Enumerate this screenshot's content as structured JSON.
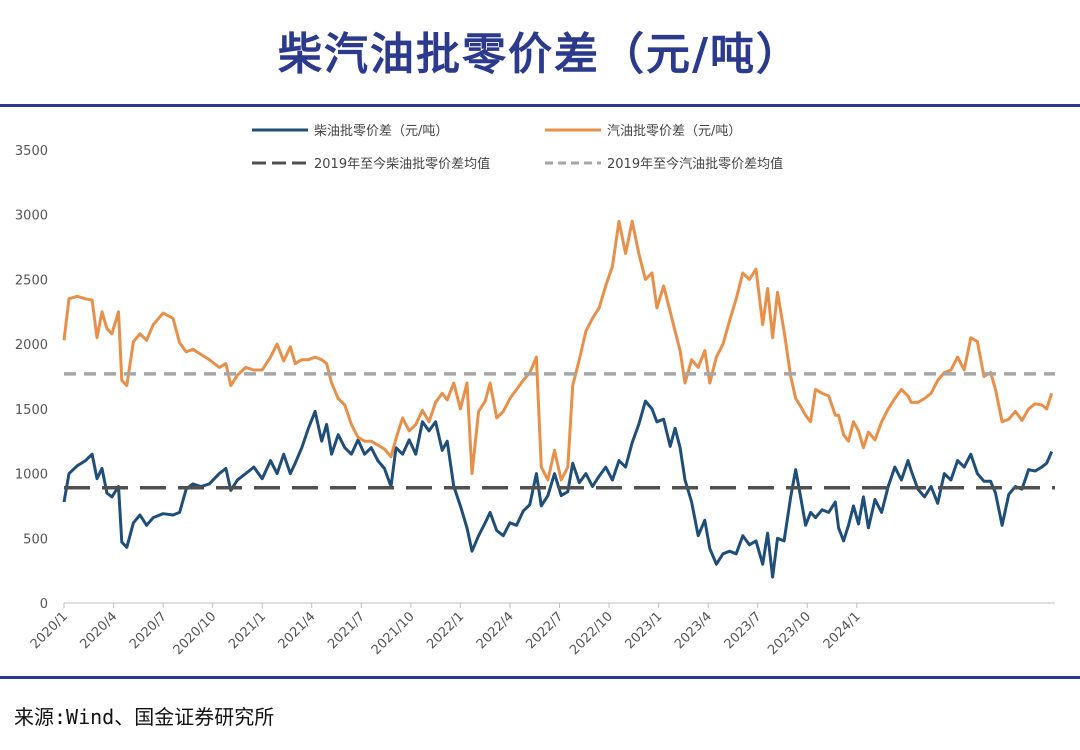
{
  "title": "柴汽油批零价差（元/吨）",
  "source": "来源:Wind、国金证券研究所",
  "chart_data": {
    "type": "line",
    "ylim": [
      0,
      3500
    ],
    "yticks": [
      0,
      500,
      1000,
      1500,
      2000,
      2500,
      3000,
      3500
    ],
    "xticks": [
      "2020/1",
      "2020/4",
      "2020/7",
      "2020/10",
      "2021/1",
      "2021/4",
      "2021/7",
      "2021/10",
      "2022/1",
      "2022/4",
      "2022/7",
      "2022/10",
      "2023/1",
      "2023/4",
      "2023/7",
      "2023/10",
      "2024/1"
    ],
    "xrange_months": [
      0,
      51
    ],
    "legend_position": "top",
    "series": [
      {
        "name": "柴油批零价差（元/吨）",
        "color": "#1f4e79",
        "style": "solid",
        "points": [
          [
            0,
            780
          ],
          [
            0.3,
            1000
          ],
          [
            0.8,
            1060
          ],
          [
            1.3,
            1100
          ],
          [
            1.7,
            1150
          ],
          [
            2.0,
            960
          ],
          [
            2.3,
            1040
          ],
          [
            2.6,
            850
          ],
          [
            2.9,
            820
          ],
          [
            3.3,
            900
          ],
          [
            3.5,
            470
          ],
          [
            3.8,
            430
          ],
          [
            4.2,
            620
          ],
          [
            4.6,
            680
          ],
          [
            5.0,
            600
          ],
          [
            5.4,
            660
          ],
          [
            6.0,
            690
          ],
          [
            6.6,
            680
          ],
          [
            7.0,
            700
          ],
          [
            7.4,
            880
          ],
          [
            7.8,
            920
          ],
          [
            8.3,
            900
          ],
          [
            8.8,
            920
          ],
          [
            9.4,
            1000
          ],
          [
            9.8,
            1040
          ],
          [
            10.1,
            870
          ],
          [
            10.5,
            950
          ],
          [
            11.0,
            1000
          ],
          [
            11.5,
            1050
          ],
          [
            12.0,
            960
          ],
          [
            12.5,
            1100
          ],
          [
            12.9,
            1000
          ],
          [
            13.3,
            1150
          ],
          [
            13.7,
            1000
          ],
          [
            14.0,
            1080
          ],
          [
            14.4,
            1200
          ],
          [
            14.8,
            1350
          ],
          [
            15.2,
            1480
          ],
          [
            15.6,
            1250
          ],
          [
            15.9,
            1380
          ],
          [
            16.2,
            1150
          ],
          [
            16.6,
            1300
          ],
          [
            17.0,
            1200
          ],
          [
            17.4,
            1150
          ],
          [
            17.8,
            1260
          ],
          [
            18.2,
            1150
          ],
          [
            18.6,
            1200
          ],
          [
            19.0,
            1100
          ],
          [
            19.4,
            1040
          ],
          [
            19.8,
            900
          ],
          [
            20.1,
            1200
          ],
          [
            20.5,
            1150
          ],
          [
            20.9,
            1260
          ],
          [
            21.3,
            1150
          ],
          [
            21.7,
            1400
          ],
          [
            22.1,
            1330
          ],
          [
            22.5,
            1400
          ],
          [
            22.9,
            1180
          ],
          [
            23.2,
            1250
          ],
          [
            23.6,
            900
          ],
          [
            24.0,
            750
          ],
          [
            24.4,
            580
          ],
          [
            24.7,
            400
          ],
          [
            25.1,
            520
          ],
          [
            25.5,
            620
          ],
          [
            25.8,
            700
          ],
          [
            26.2,
            560
          ],
          [
            26.6,
            520
          ],
          [
            27.0,
            620
          ],
          [
            27.4,
            600
          ],
          [
            27.8,
            710
          ],
          [
            28.2,
            760
          ],
          [
            28.6,
            1000
          ],
          [
            28.9,
            750
          ],
          [
            29.3,
            830
          ],
          [
            29.7,
            1000
          ],
          [
            30.1,
            830
          ],
          [
            30.5,
            860
          ],
          [
            30.8,
            1080
          ],
          [
            31.2,
            930
          ],
          [
            31.6,
            1000
          ],
          [
            32.0,
            900
          ],
          [
            32.4,
            980
          ],
          [
            32.8,
            1050
          ],
          [
            33.2,
            950
          ],
          [
            33.6,
            1100
          ],
          [
            34.0,
            1050
          ],
          [
            34.4,
            1240
          ],
          [
            34.8,
            1380
          ],
          [
            35.2,
            1560
          ],
          [
            35.6,
            1500
          ],
          [
            35.9,
            1400
          ],
          [
            36.3,
            1420
          ],
          [
            36.7,
            1210
          ],
          [
            37.0,
            1350
          ],
          [
            37.3,
            1200
          ],
          [
            37.6,
            950
          ],
          [
            38.0,
            780
          ],
          [
            38.4,
            520
          ],
          [
            38.8,
            640
          ],
          [
            39.1,
            420
          ],
          [
            39.5,
            300
          ],
          [
            39.9,
            380
          ],
          [
            40.3,
            400
          ],
          [
            40.7,
            380
          ],
          [
            41.1,
            520
          ],
          [
            41.5,
            450
          ],
          [
            41.9,
            480
          ],
          [
            42.3,
            300
          ],
          [
            42.6,
            540
          ],
          [
            42.9,
            200
          ],
          [
            43.2,
            500
          ],
          [
            43.6,
            480
          ],
          [
            44.0,
            820
          ],
          [
            44.3,
            1030
          ],
          [
            44.6,
            820
          ],
          [
            44.9,
            600
          ],
          [
            45.2,
            700
          ],
          [
            45.5,
            660
          ],
          [
            45.9,
            720
          ],
          [
            46.3,
            700
          ],
          [
            46.7,
            780
          ],
          [
            46.9,
            580
          ],
          [
            47.2,
            480
          ],
          [
            47.5,
            600
          ],
          [
            47.8,
            750
          ],
          [
            48.1,
            610
          ],
          [
            48.4,
            820
          ],
          [
            48.7,
            580
          ],
          [
            49.1,
            800
          ],
          [
            49.5,
            700
          ],
          [
            49.9,
            900
          ],
          [
            50.3,
            1050
          ],
          [
            50.7,
            950
          ],
          [
            51.1,
            1100
          ],
          [
            51.3,
            1020
          ],
          [
            51.7,
            880
          ],
          [
            52.1,
            820
          ],
          [
            52.5,
            900
          ],
          [
            52.9,
            770
          ],
          [
            53.3,
            1000
          ],
          [
            53.7,
            950
          ],
          [
            54.1,
            1100
          ],
          [
            54.5,
            1050
          ],
          [
            54.9,
            1150
          ],
          [
            55.3,
            1000
          ],
          [
            55.7,
            940
          ],
          [
            56.1,
            940
          ],
          [
            56.4,
            850
          ],
          [
            56.8,
            600
          ],
          [
            57.2,
            840
          ],
          [
            57.6,
            900
          ],
          [
            58.0,
            880
          ],
          [
            58.4,
            1030
          ],
          [
            58.8,
            1020
          ],
          [
            59.2,
            1050
          ],
          [
            59.5,
            1080
          ],
          [
            59.8,
            1170
          ]
        ]
      },
      {
        "name": "汽油批零价差（元/吨）",
        "color": "#e8904a",
        "style": "solid",
        "points": [
          [
            0,
            2030
          ],
          [
            0.3,
            2350
          ],
          [
            0.8,
            2370
          ],
          [
            1.3,
            2350
          ],
          [
            1.7,
            2340
          ],
          [
            2.0,
            2050
          ],
          [
            2.3,
            2250
          ],
          [
            2.6,
            2120
          ],
          [
            2.9,
            2080
          ],
          [
            3.3,
            2250
          ],
          [
            3.5,
            1720
          ],
          [
            3.8,
            1680
          ],
          [
            4.2,
            2020
          ],
          [
            4.6,
            2080
          ],
          [
            5.0,
            2030
          ],
          [
            5.4,
            2150
          ],
          [
            6.0,
            2240
          ],
          [
            6.6,
            2200
          ],
          [
            7.0,
            2010
          ],
          [
            7.4,
            1940
          ],
          [
            7.8,
            1960
          ],
          [
            8.3,
            1920
          ],
          [
            8.8,
            1880
          ],
          [
            9.4,
            1820
          ],
          [
            9.8,
            1850
          ],
          [
            10.1,
            1680
          ],
          [
            10.5,
            1760
          ],
          [
            11.0,
            1820
          ],
          [
            11.5,
            1800
          ],
          [
            12.0,
            1800
          ],
          [
            12.5,
            1900
          ],
          [
            12.9,
            2000
          ],
          [
            13.3,
            1870
          ],
          [
            13.7,
            1980
          ],
          [
            14.0,
            1850
          ],
          [
            14.4,
            1880
          ],
          [
            14.8,
            1880
          ],
          [
            15.2,
            1900
          ],
          [
            15.6,
            1880
          ],
          [
            15.9,
            1850
          ],
          [
            16.2,
            1700
          ],
          [
            16.6,
            1580
          ],
          [
            17.0,
            1530
          ],
          [
            17.4,
            1380
          ],
          [
            17.8,
            1280
          ],
          [
            18.2,
            1250
          ],
          [
            18.6,
            1250
          ],
          [
            19.0,
            1220
          ],
          [
            19.4,
            1190
          ],
          [
            19.8,
            1130
          ],
          [
            20.1,
            1270
          ],
          [
            20.5,
            1430
          ],
          [
            20.9,
            1330
          ],
          [
            21.3,
            1380
          ],
          [
            21.7,
            1490
          ],
          [
            22.1,
            1400
          ],
          [
            22.5,
            1550
          ],
          [
            22.9,
            1620
          ],
          [
            23.2,
            1570
          ],
          [
            23.6,
            1700
          ],
          [
            24.0,
            1500
          ],
          [
            24.4,
            1700
          ],
          [
            24.7,
            1000
          ],
          [
            25.1,
            1480
          ],
          [
            25.5,
            1560
          ],
          [
            25.8,
            1700
          ],
          [
            26.2,
            1430
          ],
          [
            26.6,
            1480
          ],
          [
            27.0,
            1580
          ],
          [
            27.4,
            1650
          ],
          [
            27.8,
            1720
          ],
          [
            28.2,
            1780
          ],
          [
            28.6,
            1900
          ],
          [
            28.9,
            1050
          ],
          [
            29.3,
            950
          ],
          [
            29.7,
            1180
          ],
          [
            30.1,
            950
          ],
          [
            30.5,
            1050
          ],
          [
            30.8,
            1680
          ],
          [
            31.2,
            1880
          ],
          [
            31.6,
            2100
          ],
          [
            32.0,
            2200
          ],
          [
            32.4,
            2280
          ],
          [
            32.8,
            2450
          ],
          [
            33.2,
            2600
          ],
          [
            33.6,
            2950
          ],
          [
            34.0,
            2700
          ],
          [
            34.4,
            2950
          ],
          [
            34.8,
            2700
          ],
          [
            35.2,
            2500
          ],
          [
            35.6,
            2550
          ],
          [
            35.9,
            2280
          ],
          [
            36.3,
            2450
          ],
          [
            36.7,
            2250
          ],
          [
            37.0,
            2100
          ],
          [
            37.3,
            1950
          ],
          [
            37.6,
            1700
          ],
          [
            38.0,
            1880
          ],
          [
            38.4,
            1820
          ],
          [
            38.8,
            1950
          ],
          [
            39.1,
            1700
          ],
          [
            39.5,
            1900
          ],
          [
            39.9,
            2000
          ],
          [
            40.3,
            2180
          ],
          [
            40.7,
            2350
          ],
          [
            41.1,
            2550
          ],
          [
            41.5,
            2500
          ],
          [
            41.9,
            2580
          ],
          [
            42.3,
            2150
          ],
          [
            42.6,
            2430
          ],
          [
            42.9,
            2050
          ],
          [
            43.2,
            2400
          ],
          [
            43.6,
            2100
          ],
          [
            44.0,
            1750
          ],
          [
            44.3,
            1580
          ],
          [
            44.6,
            1520
          ],
          [
            44.9,
            1450
          ],
          [
            45.2,
            1400
          ],
          [
            45.5,
            1650
          ],
          [
            45.9,
            1620
          ],
          [
            46.3,
            1600
          ],
          [
            46.7,
            1450
          ],
          [
            46.9,
            1450
          ],
          [
            47.2,
            1300
          ],
          [
            47.5,
            1250
          ],
          [
            47.8,
            1400
          ],
          [
            48.1,
            1330
          ],
          [
            48.4,
            1200
          ],
          [
            48.7,
            1320
          ],
          [
            49.1,
            1260
          ],
          [
            49.5,
            1400
          ],
          [
            49.9,
            1500
          ],
          [
            50.3,
            1580
          ],
          [
            50.7,
            1650
          ],
          [
            51.1,
            1600
          ],
          [
            51.3,
            1550
          ],
          [
            51.7,
            1550
          ],
          [
            52.1,
            1580
          ],
          [
            52.5,
            1620
          ],
          [
            52.9,
            1720
          ],
          [
            53.3,
            1780
          ],
          [
            53.7,
            1800
          ],
          [
            54.1,
            1900
          ],
          [
            54.5,
            1800
          ],
          [
            54.9,
            2050
          ],
          [
            55.3,
            2020
          ],
          [
            55.7,
            1750
          ],
          [
            56.1,
            1780
          ],
          [
            56.4,
            1650
          ],
          [
            56.8,
            1400
          ],
          [
            57.2,
            1420
          ],
          [
            57.6,
            1480
          ],
          [
            58.0,
            1410
          ],
          [
            58.4,
            1500
          ],
          [
            58.8,
            1540
          ],
          [
            59.2,
            1530
          ],
          [
            59.5,
            1500
          ],
          [
            59.8,
            1620
          ]
        ]
      },
      {
        "name": "2019年至今柴油批零价差均值",
        "color": "#505050",
        "style": "dashed",
        "constant": 890
      },
      {
        "name": "2019年至今汽油批零价差均值",
        "color": "#a6a6a6",
        "style": "dashed",
        "constant": 1770
      }
    ]
  }
}
